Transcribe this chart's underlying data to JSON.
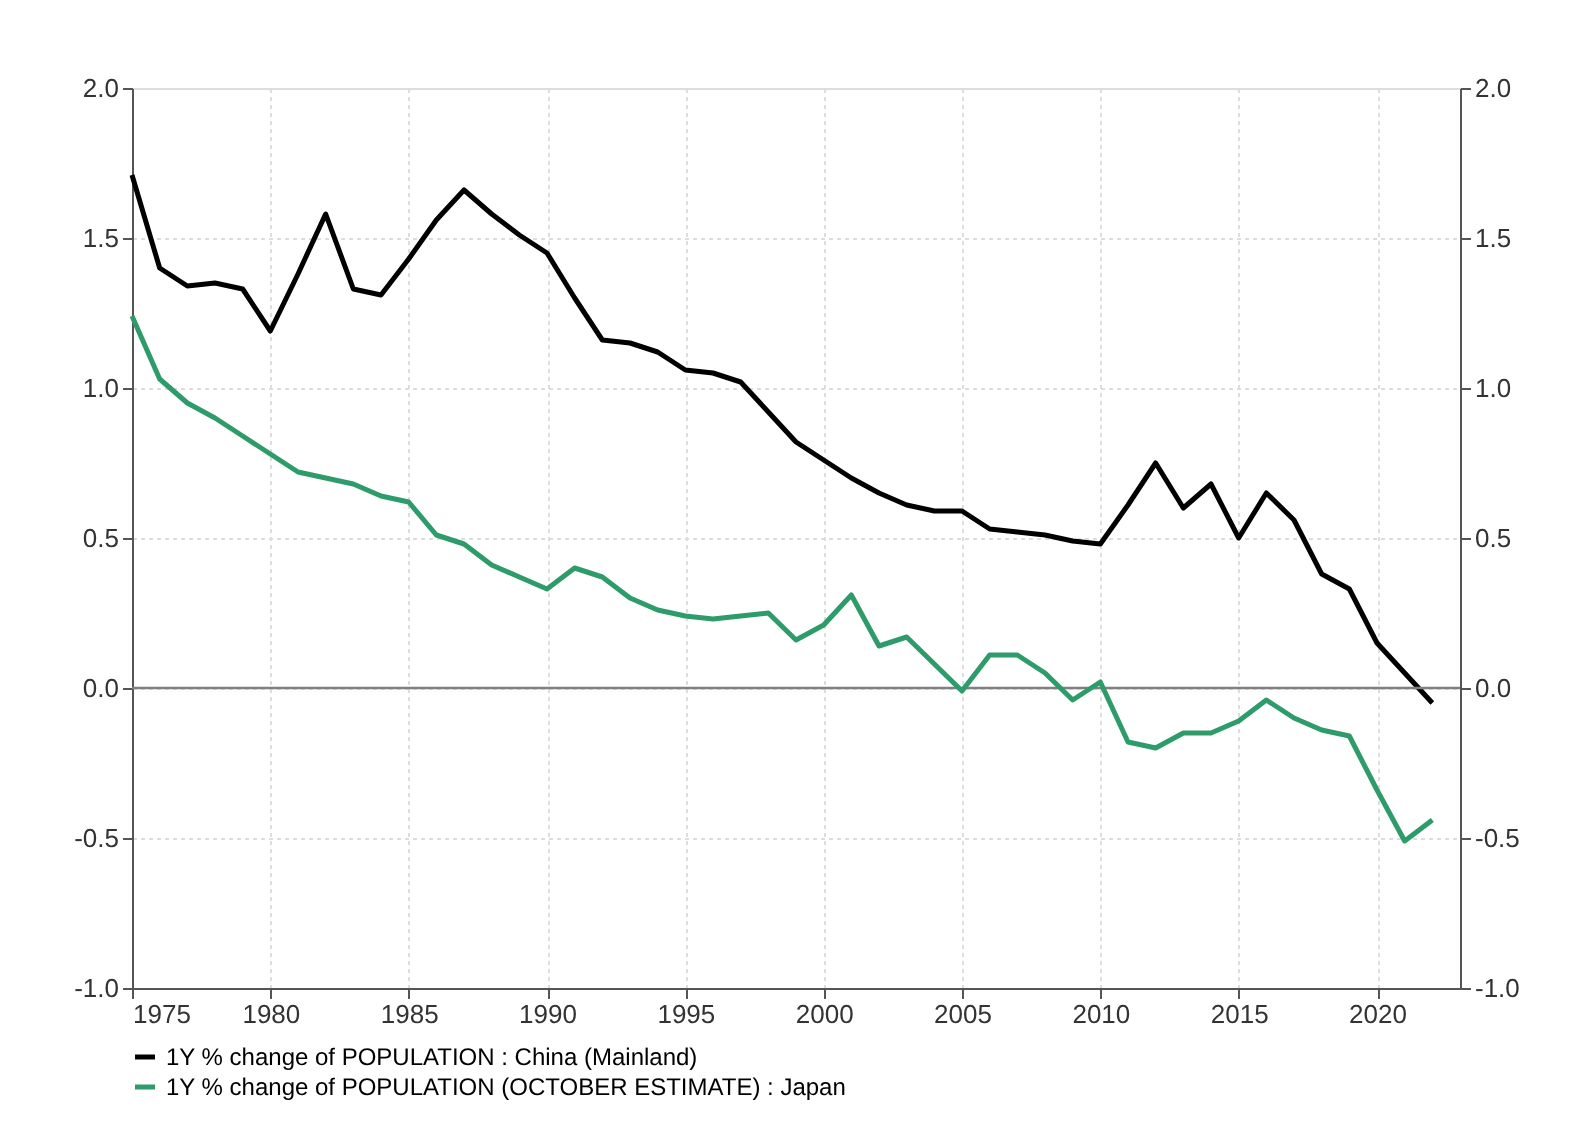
{
  "chart_data": {
    "type": "line",
    "x": [
      1975,
      1976,
      1977,
      1978,
      1979,
      1980,
      1981,
      1982,
      1983,
      1984,
      1985,
      1986,
      1987,
      1988,
      1989,
      1990,
      1991,
      1992,
      1993,
      1994,
      1995,
      1996,
      1997,
      1998,
      1999,
      2000,
      2001,
      2002,
      2003,
      2004,
      2005,
      2006,
      2007,
      2008,
      2009,
      2010,
      2011,
      2012,
      2013,
      2014,
      2015,
      2016,
      2017,
      2018,
      2019,
      2020,
      2021,
      2022
    ],
    "series": [
      {
        "name": "1Y % change of POPULATION : China (Mainland)",
        "color": "#000000",
        "values": [
          1.71,
          1.4,
          1.34,
          1.35,
          1.33,
          1.19,
          1.38,
          1.58,
          1.33,
          1.31,
          1.43,
          1.56,
          1.66,
          1.58,
          1.51,
          1.45,
          1.3,
          1.16,
          1.15,
          1.12,
          1.06,
          1.05,
          1.02,
          0.92,
          0.82,
          0.76,
          0.7,
          0.65,
          0.61,
          0.59,
          0.59,
          0.53,
          0.52,
          0.51,
          0.49,
          0.48,
          0.61,
          0.75,
          0.6,
          0.68,
          0.5,
          0.65,
          0.56,
          0.38,
          0.33,
          0.15,
          0.05,
          -0.05
        ]
      },
      {
        "name": "1Y % change of POPULATION (OCTOBER ESTIMATE) : Japan",
        "color": "#2e9b6a",
        "values": [
          1.24,
          1.03,
          0.95,
          0.9,
          0.84,
          0.78,
          0.72,
          0.7,
          0.68,
          0.64,
          0.62,
          0.51,
          0.48,
          0.41,
          0.37,
          0.33,
          0.4,
          0.37,
          0.3,
          0.26,
          0.24,
          0.23,
          0.24,
          0.25,
          0.16,
          0.21,
          0.31,
          0.14,
          0.17,
          0.08,
          -0.01,
          0.11,
          0.11,
          0.05,
          -0.04,
          0.02,
          -0.18,
          -0.2,
          -0.15,
          -0.15,
          -0.11,
          -0.04,
          -0.1,
          -0.14,
          -0.16,
          -0.34,
          -0.51,
          -0.44
        ]
      }
    ],
    "xlim": [
      1975,
      2023
    ],
    "xticks": [
      1975,
      1980,
      1985,
      1990,
      1995,
      2000,
      2005,
      2010,
      2015,
      2020
    ],
    "ylim": [
      -1.0,
      2.0
    ],
    "yticks": [
      {
        "value": -1.0,
        "label": "-1.0"
      },
      {
        "value": -0.5,
        "label": "-0.5"
      },
      {
        "value": 0,
        "label": "0.0"
      },
      {
        "value": 0.5,
        "label": "0.5"
      },
      {
        "value": 1.0,
        "label": "1.0"
      },
      {
        "value": 1.5,
        "label": "1.5"
      },
      {
        "value": 2.0,
        "label": "2.0"
      }
    ],
    "y2lim": [
      -1.0,
      2.0
    ],
    "y2ticks": [
      {
        "value": -1.0,
        "label": "-1.0"
      },
      {
        "value": -0.5,
        "label": "-0.5"
      },
      {
        "value": 0,
        "label": "0.0"
      },
      {
        "value": 0.5,
        "label": "0.5"
      },
      {
        "value": 1.0,
        "label": "1.0"
      },
      {
        "value": 1.5,
        "label": "1.5"
      },
      {
        "value": 2.0,
        "label": "2.0"
      }
    ],
    "ref_lines": [
      {
        "axis": "y",
        "value": 0,
        "color": "#808080"
      }
    ],
    "grid": true,
    "legend": "bottom left",
    "marker": "none",
    "line_style": "solid"
  }
}
